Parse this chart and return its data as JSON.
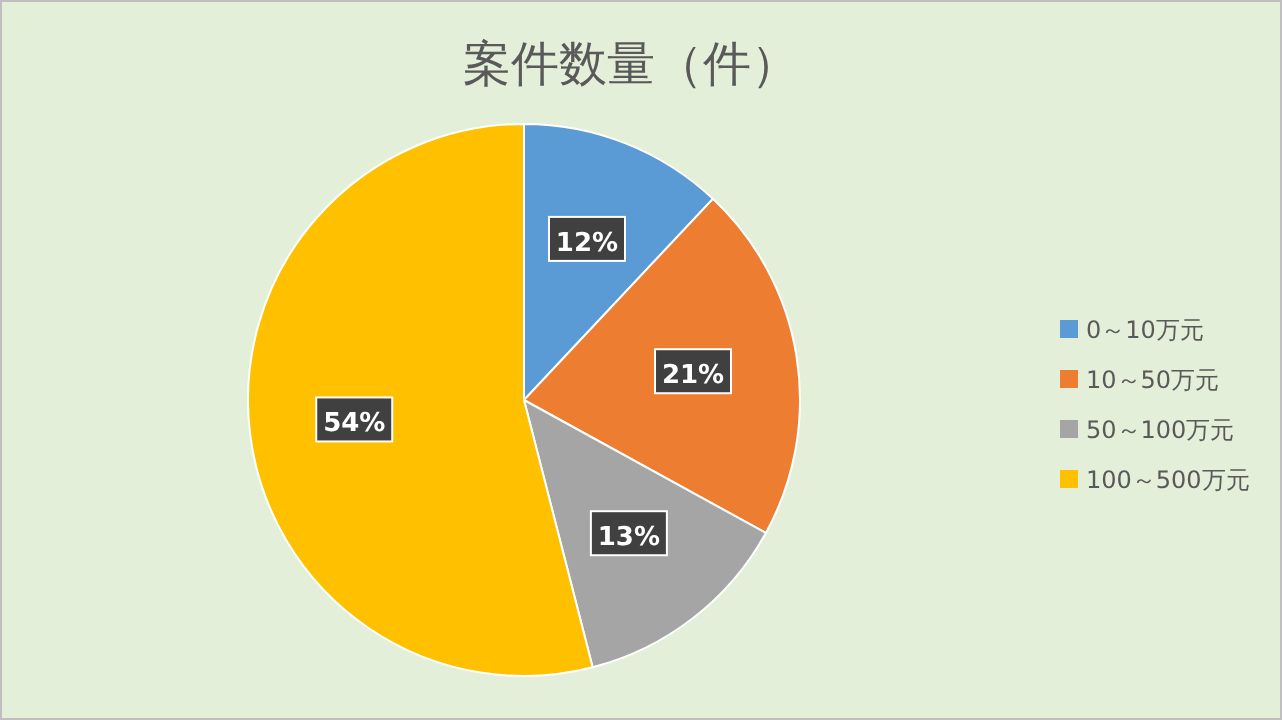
{
  "chart_data": {
    "type": "pie",
    "title": "案件数量（件）",
    "categories": [
      "0～10万元",
      "10～50万元",
      "50～100万元",
      "100～500万元"
    ],
    "values": [
      12,
      21,
      13,
      54
    ],
    "colors": [
      "#5b9bd5",
      "#ed7d31",
      "#a5a5a5",
      "#ffc000"
    ],
    "value_labels": [
      "12%",
      "21%",
      "13%",
      "54%"
    ],
    "legend": "right"
  }
}
